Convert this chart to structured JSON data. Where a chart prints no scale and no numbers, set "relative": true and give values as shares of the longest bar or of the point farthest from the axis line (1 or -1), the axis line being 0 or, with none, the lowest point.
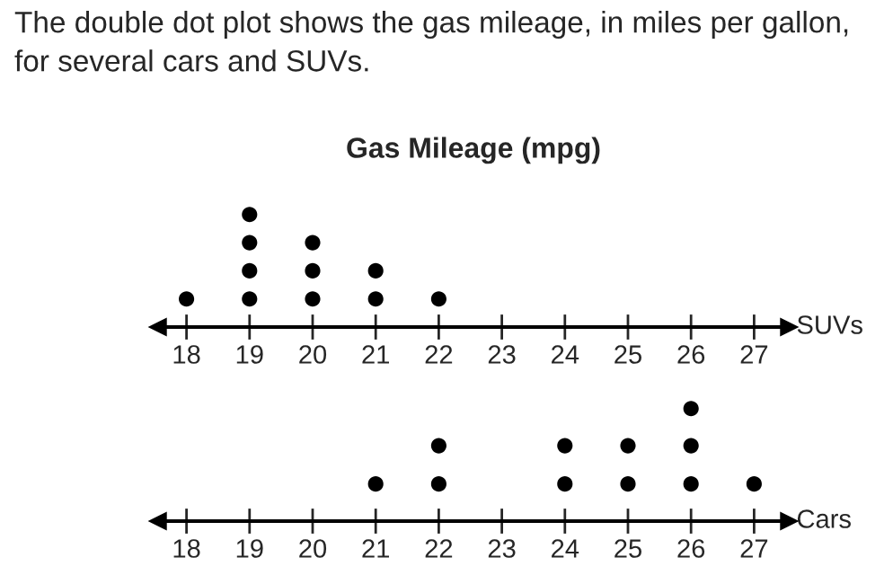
{
  "chart_data": [
    {
      "type": "scatter",
      "title": "Gas Mileage (mpg)",
      "annotations": [
        "The double dot plot shows the gas mileage, in miles per gallon, for several cars and SUVs."
      ],
      "relative": true,
      "marker": "circle",
      "xlim": [
        17.55,
        27.55
      ],
      "xticks": [
        18,
        19,
        20,
        21,
        22,
        23,
        24,
        25,
        26,
        27
      ],
      "series": [
        {
          "name": "SUVs",
          "color": "#000000",
          "x": [
            18,
            19,
            19,
            19,
            19,
            20,
            20,
            20,
            21,
            21,
            22
          ],
          "values": [
            0.25,
            0.25,
            0.5,
            0.75,
            1,
            0.25,
            0.5,
            0.75,
            0.25,
            0.5,
            0.25
          ]
        }
      ]
    },
    {
      "type": "scatter",
      "relative": true,
      "marker": "circle",
      "xlim": [
        17.55,
        27.55
      ],
      "xticks": [
        18,
        19,
        20,
        21,
        22,
        23,
        24,
        25,
        26,
        27
      ],
      "series": [
        {
          "name": "Cars",
          "color": "#000000",
          "x": [
            21,
            22,
            22,
            24,
            24,
            25,
            25,
            26,
            26,
            26,
            27
          ],
          "values": [
            0.33,
            0.33,
            0.67,
            0.33,
            0.67,
            0.33,
            0.67,
            0.33,
            0.67,
            1,
            0.33
          ]
        }
      ]
    }
  ]
}
